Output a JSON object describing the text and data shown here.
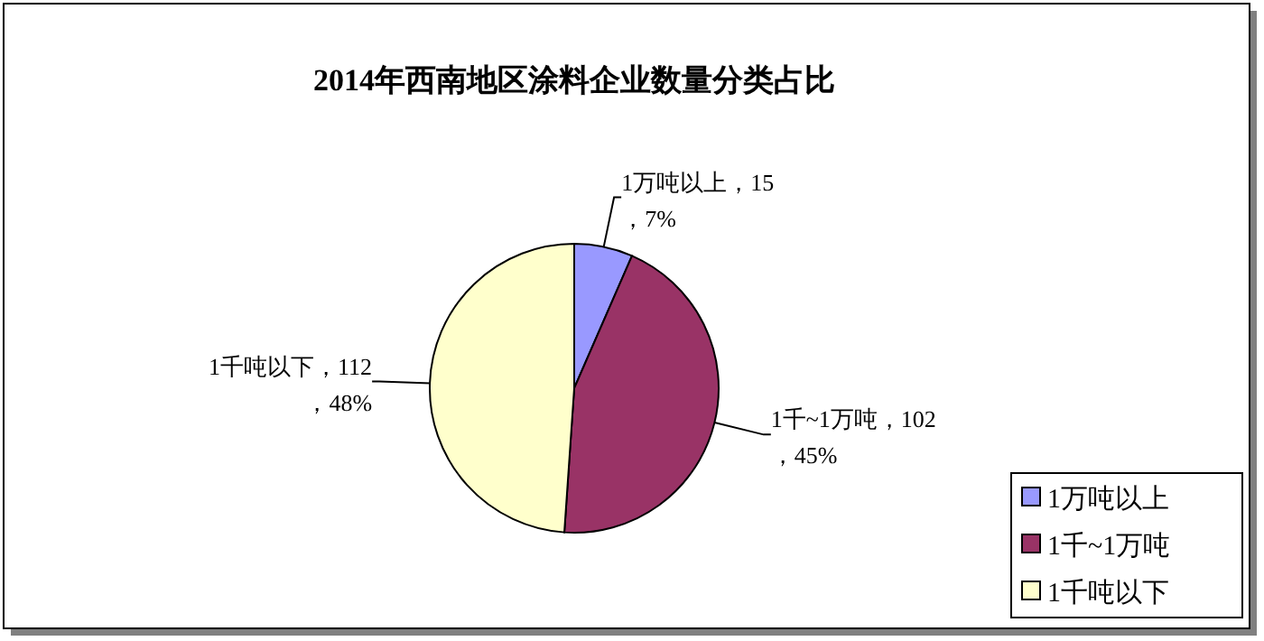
{
  "chart_data": {
    "type": "pie",
    "title": "2014年西南地区涂料企业数量分类占比",
    "categories": [
      "1万吨以上",
      "1千~1万吨",
      "1千吨以下"
    ],
    "values": [
      15,
      102,
      112
    ],
    "colors": [
      "#9999ff",
      "#993366",
      "#ffffcc"
    ],
    "value_labels": [
      "1万吨以上，15，7%",
      "1千~1万吨，102，45%",
      "1千吨以下，112，48%"
    ],
    "legend": "bottom right"
  }
}
